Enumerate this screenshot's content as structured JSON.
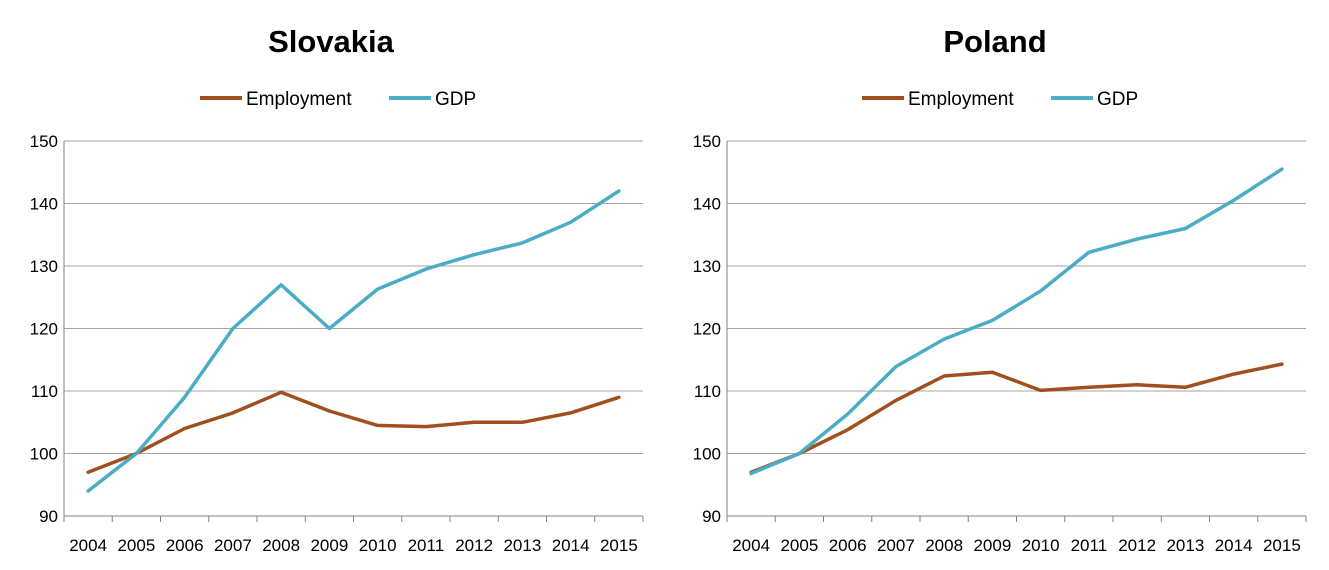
{
  "colors": {
    "employment": "#A0501E",
    "gdp": "#4BACC6",
    "grid": "#A6A6A6",
    "axis": "#808080"
  },
  "chart_data": [
    {
      "type": "line",
      "title": "Slovakia",
      "categories": [
        "2004",
        "2005",
        "2006",
        "2007",
        "2008",
        "2009",
        "2010",
        "2011",
        "2012",
        "2013",
        "2014",
        "2015"
      ],
      "ylim": [
        90,
        150
      ],
      "yticks": [
        90,
        100,
        110,
        120,
        130,
        140,
        150
      ],
      "grid": true,
      "legend_position": "top-center",
      "series": [
        {
          "name": "Employment",
          "values": [
            97,
            100,
            104,
            106.5,
            109.8,
            106.8,
            104.5,
            104.3,
            105,
            105,
            106.5,
            109
          ]
        },
        {
          "name": "GDP",
          "values": [
            94,
            100,
            109,
            120,
            127,
            120,
            126.3,
            129.5,
            131.8,
            133.7,
            137,
            142
          ]
        }
      ]
    },
    {
      "type": "line",
      "title": "Poland",
      "categories": [
        "2004",
        "2005",
        "2006",
        "2007",
        "2008",
        "2009",
        "2010",
        "2011",
        "2012",
        "2013",
        "2014",
        "2015"
      ],
      "ylim": [
        90,
        150
      ],
      "yticks": [
        90,
        100,
        110,
        120,
        130,
        140,
        150
      ],
      "grid": true,
      "legend_position": "top-center",
      "series": [
        {
          "name": "Employment",
          "values": [
            97,
            100,
            103.8,
            108.5,
            112.4,
            113,
            110.1,
            110.6,
            111,
            110.6,
            112.7,
            114.3
          ]
        },
        {
          "name": "GDP",
          "values": [
            96.8,
            100,
            106.3,
            113.9,
            118.3,
            121.3,
            126,
            132.2,
            134.3,
            136,
            140.5,
            145.5
          ]
        }
      ]
    }
  ]
}
